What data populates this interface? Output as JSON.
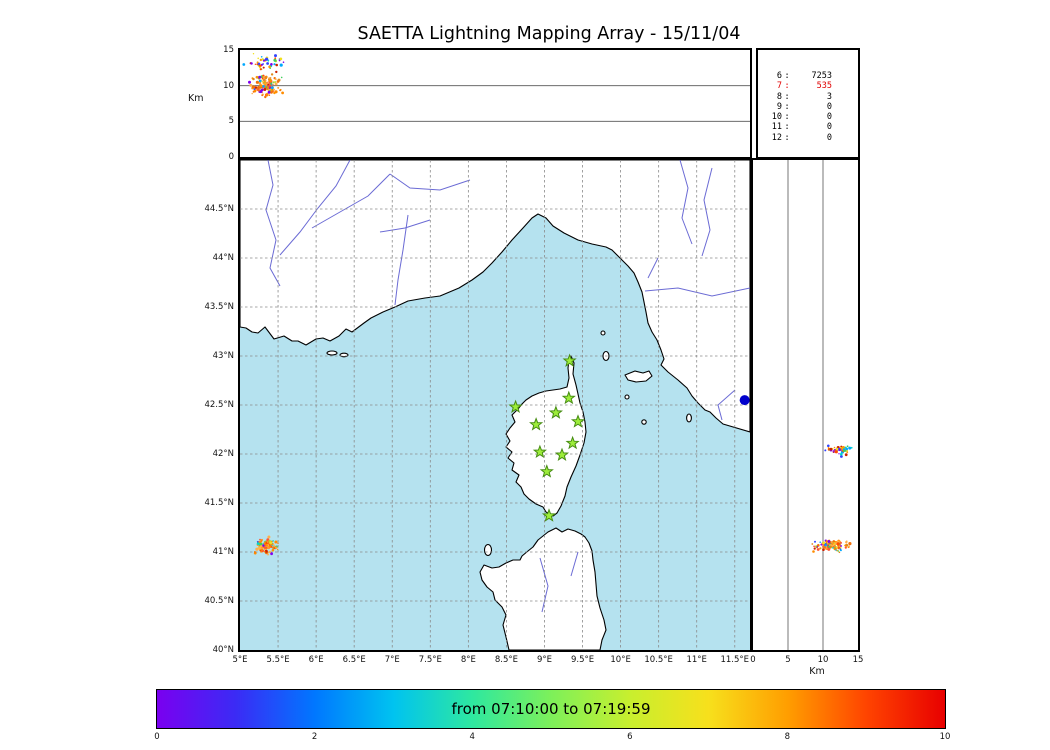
{
  "title": "SAETTA Lightning Mapping Array - 15/11/04",
  "chart_data": {
    "type": "scatter",
    "title": "SAETTA Lightning Mapping Array - 15/11/04",
    "source_count_table": {
      "separator": ":",
      "rows": [
        {
          "label": "6",
          "value": "7253",
          "highlight": false
        },
        {
          "label": "7",
          "value": "535",
          "highlight": true
        },
        {
          "label": "8",
          "value": "3",
          "highlight": false
        },
        {
          "label": "9",
          "value": "0",
          "highlight": false
        },
        {
          "label": "10",
          "value": "0",
          "highlight": false
        },
        {
          "label": "11",
          "value": "0",
          "highlight": false
        },
        {
          "label": "12",
          "value": "0",
          "highlight": false
        }
      ]
    },
    "altitude_longitude_panel": {
      "ylabel": "Km",
      "ylim": [
        0,
        15
      ],
      "yticks": [
        "15",
        "10",
        "5",
        "0"
      ],
      "gridlines_km": [
        5,
        10
      ],
      "clusters": [
        {
          "lon_center": 5.33,
          "alt_center_km": 10.0,
          "lon_spread_deg": 0.18,
          "alt_spread_km": 1.5,
          "n_points": 140,
          "color_mode": "warm"
        },
        {
          "lon_center": 5.3,
          "alt_center_km": 13.2,
          "lon_spread_deg": 0.27,
          "alt_spread_km": 1.1,
          "n_points": 45,
          "color_mode": "mixed"
        }
      ]
    },
    "map_panel": {
      "lon_lim": [
        5.0,
        11.7
      ],
      "lat_lim": [
        40.0,
        45.0
      ],
      "lon_ticks": [
        "5°E",
        "5.5°E",
        "6°E",
        "6.5°E",
        "7°E",
        "7.5°E",
        "8°E",
        "8.5°E",
        "9°E",
        "9.5°E",
        "10°E",
        "10.5°E",
        "11°E",
        "11.5°E"
      ],
      "lat_ticks": [
        "44.5°N",
        "44°N",
        "43.5°N",
        "43°N",
        "42.5°N",
        "42°N",
        "41.5°N",
        "41°N",
        "40.5°N",
        "40°N"
      ],
      "sea_color": "#b5e2ef",
      "station_color": "#9ded3a",
      "stations_lon_lat": [
        [
          9.33,
          42.95
        ],
        [
          9.32,
          42.57
        ],
        [
          8.62,
          42.48
        ],
        [
          9.15,
          42.42
        ],
        [
          8.89,
          42.3
        ],
        [
          9.44,
          42.33
        ],
        [
          9.37,
          42.11
        ],
        [
          8.94,
          42.02
        ],
        [
          9.23,
          41.99
        ],
        [
          9.03,
          41.82
        ],
        [
          9.06,
          41.37
        ]
      ],
      "large_dot": {
        "lon": 11.63,
        "lat": 42.55,
        "color": "#0000cc"
      },
      "clusters": [
        {
          "lon_center": 5.34,
          "lat_center": 41.06,
          "lon_spread_deg": 0.15,
          "lat_spread_deg": 0.08,
          "n_points": 120,
          "color_mode": "warm"
        }
      ]
    },
    "altitude_latitude_panel": {
      "xlabel": "Km",
      "xlim": [
        0,
        15
      ],
      "xticks": [
        "0",
        "5",
        "10",
        "15"
      ],
      "gridlines_km": [
        5,
        10
      ],
      "clusters": [
        {
          "alt_center_km": 11.2,
          "lat_center": 41.07,
          "alt_spread_km": 2.6,
          "lat_spread_deg": 0.06,
          "n_points": 120,
          "color_mode": "warm"
        },
        {
          "alt_center_km": 12.6,
          "lat_center": 42.04,
          "alt_spread_km": 2.2,
          "lat_spread_deg": 0.05,
          "n_points": 50,
          "color_mode": "mixed"
        }
      ]
    },
    "colorbar": {
      "label": "from 07:10:00 to 07:19:59",
      "lim": [
        0,
        10
      ],
      "ticks": [
        "0",
        "2",
        "4",
        "6",
        "8",
        "10"
      ],
      "gradient": [
        "#7a00f0",
        "#3b2bf5",
        "#0077ff",
        "#00c3f0",
        "#2ee8a0",
        "#7df05a",
        "#c8ef2e",
        "#f7e01c",
        "#ff9e00",
        "#ff4400",
        "#e80000"
      ]
    },
    "point_colors": {
      "warm": [
        "#ff8c00",
        "#ff9f2e",
        "#f2700a",
        "#ff5533",
        "#e08818",
        "#ffb14d"
      ],
      "mixed": [
        "#8000f0",
        "#3344ff",
        "#00a8ff",
        "#00d8c8",
        "#3ecf5a",
        "#a8d92e",
        "#f2e01a",
        "#ff9500",
        "#ff4a00",
        "#cc2200"
      ]
    }
  }
}
